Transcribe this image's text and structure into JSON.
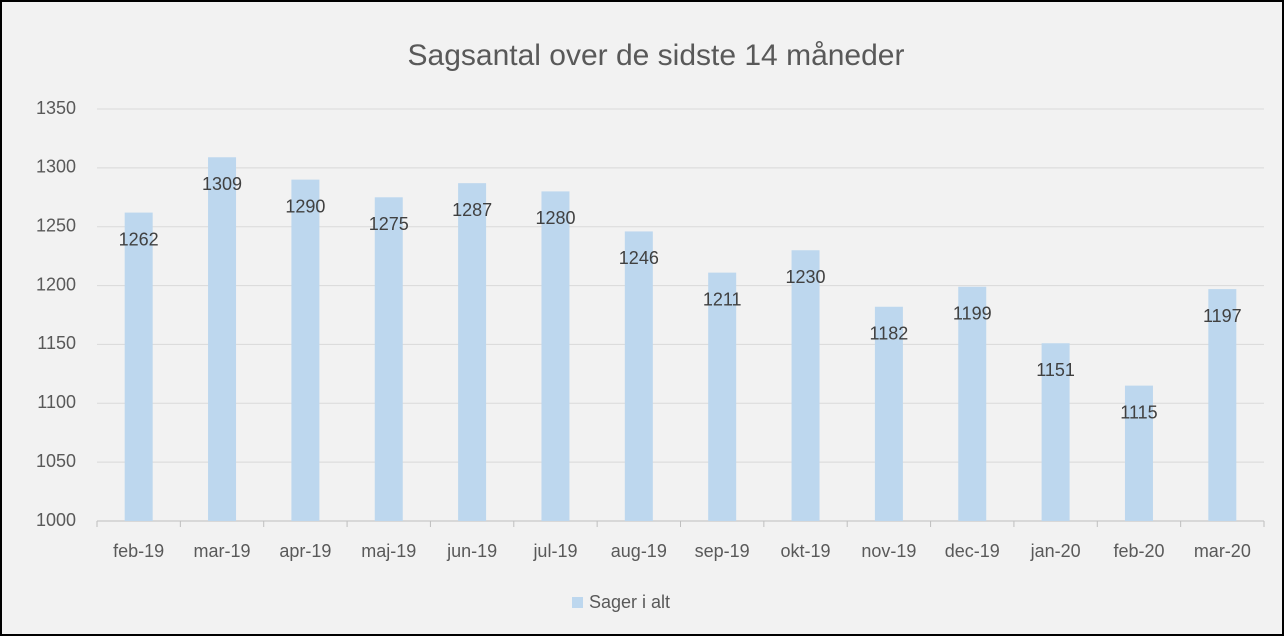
{
  "chart_data": {
    "type": "bar",
    "title": "Sagsantal over de sidste 14 måneder",
    "categories": [
      "feb-19",
      "mar-19",
      "apr-19",
      "maj-19",
      "jun-19",
      "jul-19",
      "aug-19",
      "sep-19",
      "okt-19",
      "nov-19",
      "dec-19",
      "jan-20",
      "feb-20",
      "mar-20"
    ],
    "series": [
      {
        "name": "Sager i alt",
        "color": "#bdd7ee",
        "values": [
          1262,
          1309,
          1290,
          1275,
          1287,
          1280,
          1246,
          1211,
          1230,
          1182,
          1199,
          1151,
          1115,
          1197
        ]
      }
    ],
    "ylim": [
      1000,
      1350
    ],
    "yticks": [
      1000,
      1050,
      1100,
      1150,
      1200,
      1250,
      1300,
      1350
    ],
    "grid": true,
    "legend": "bottom"
  }
}
